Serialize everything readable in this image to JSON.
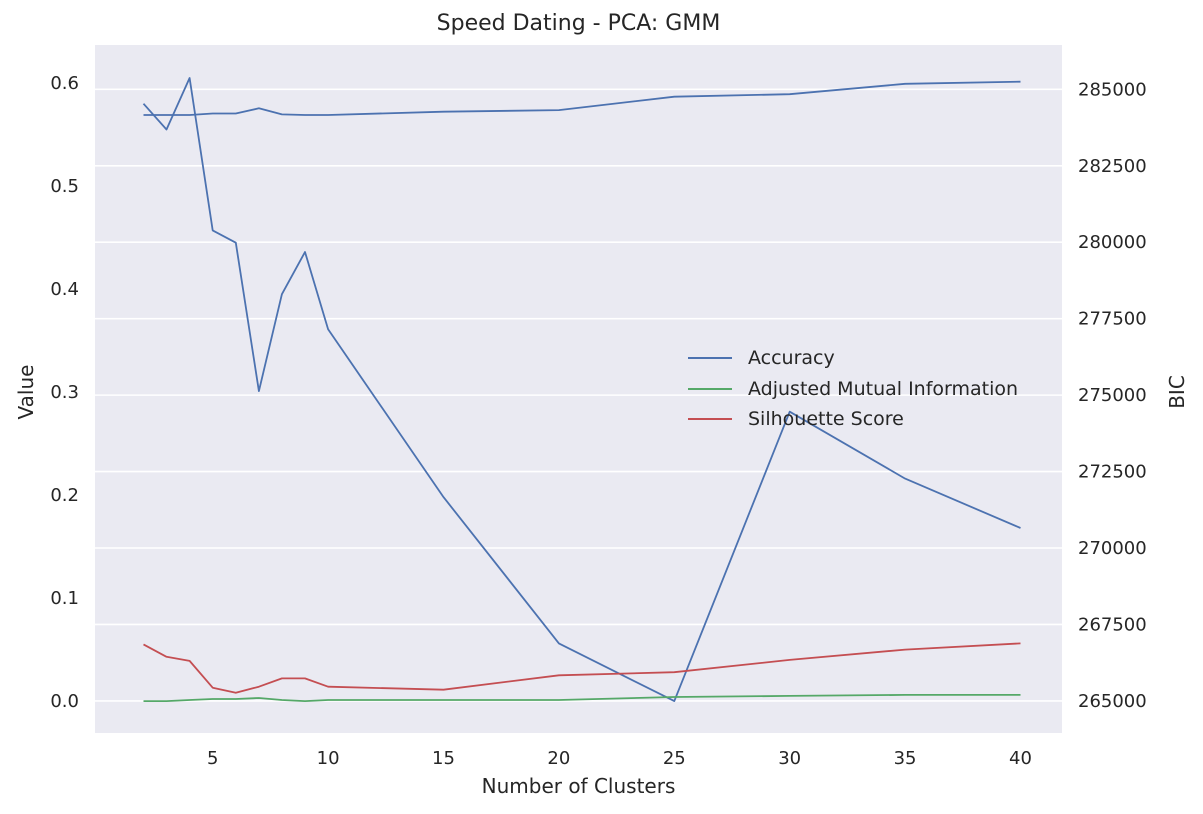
{
  "chart_data": {
    "type": "line",
    "title": "Speed Dating - PCA: GMM",
    "xlabel": "Number of Clusters",
    "ylabel": "Value",
    "y2label": "BIC",
    "x": [
      2,
      3,
      4,
      5,
      6,
      7,
      8,
      9,
      10,
      15,
      20,
      25,
      30,
      35,
      40
    ],
    "xlim": [
      -0.1,
      41.8
    ],
    "ylim": [
      -0.031,
      0.637
    ],
    "y2lim": [
      263950,
      286450
    ],
    "xticks": [
      5,
      10,
      15,
      20,
      25,
      30,
      35,
      40
    ],
    "yticks": [
      0.0,
      0.1,
      0.2,
      0.3,
      0.4,
      0.5,
      0.6
    ],
    "y2ticks": [
      265000,
      267500,
      270000,
      272500,
      275000,
      277500,
      280000,
      282500,
      285000
    ],
    "grid": true,
    "legend_position": "center-right",
    "series": [
      {
        "name": "Accuracy",
        "axis": "left",
        "color": "#4c72b0",
        "values": [
          0.58,
          0.555,
          0.605,
          0.457,
          0.445,
          0.301,
          0.395,
          0.436,
          0.361,
          0.198,
          0.056,
          0.0,
          0.281,
          0.216,
          0.168
        ]
      },
      {
        "name": "Adjusted Mutual Information",
        "axis": "left",
        "color": "#55a868",
        "values": [
          0.0,
          0.0,
          0.001,
          0.002,
          0.002,
          0.003,
          0.001,
          0.0,
          0.001,
          0.001,
          0.001,
          0.004,
          0.005,
          0.006,
          0.006
        ]
      },
      {
        "name": "Silhouette Score",
        "axis": "left",
        "color": "#c44e52",
        "values": [
          0.055,
          0.043,
          0.039,
          0.013,
          0.008,
          0.014,
          0.022,
          0.022,
          0.014,
          0.011,
          0.025,
          0.028,
          0.04,
          0.05,
          0.056
        ]
      },
      {
        "name": "",
        "axis": "right",
        "color": "#4c72b0",
        "values": [
          284160,
          284160,
          284160,
          284210,
          284210,
          284380,
          284180,
          284160,
          284160,
          284270,
          284320,
          284760,
          284840,
          285180,
          285250
        ]
      }
    ]
  }
}
